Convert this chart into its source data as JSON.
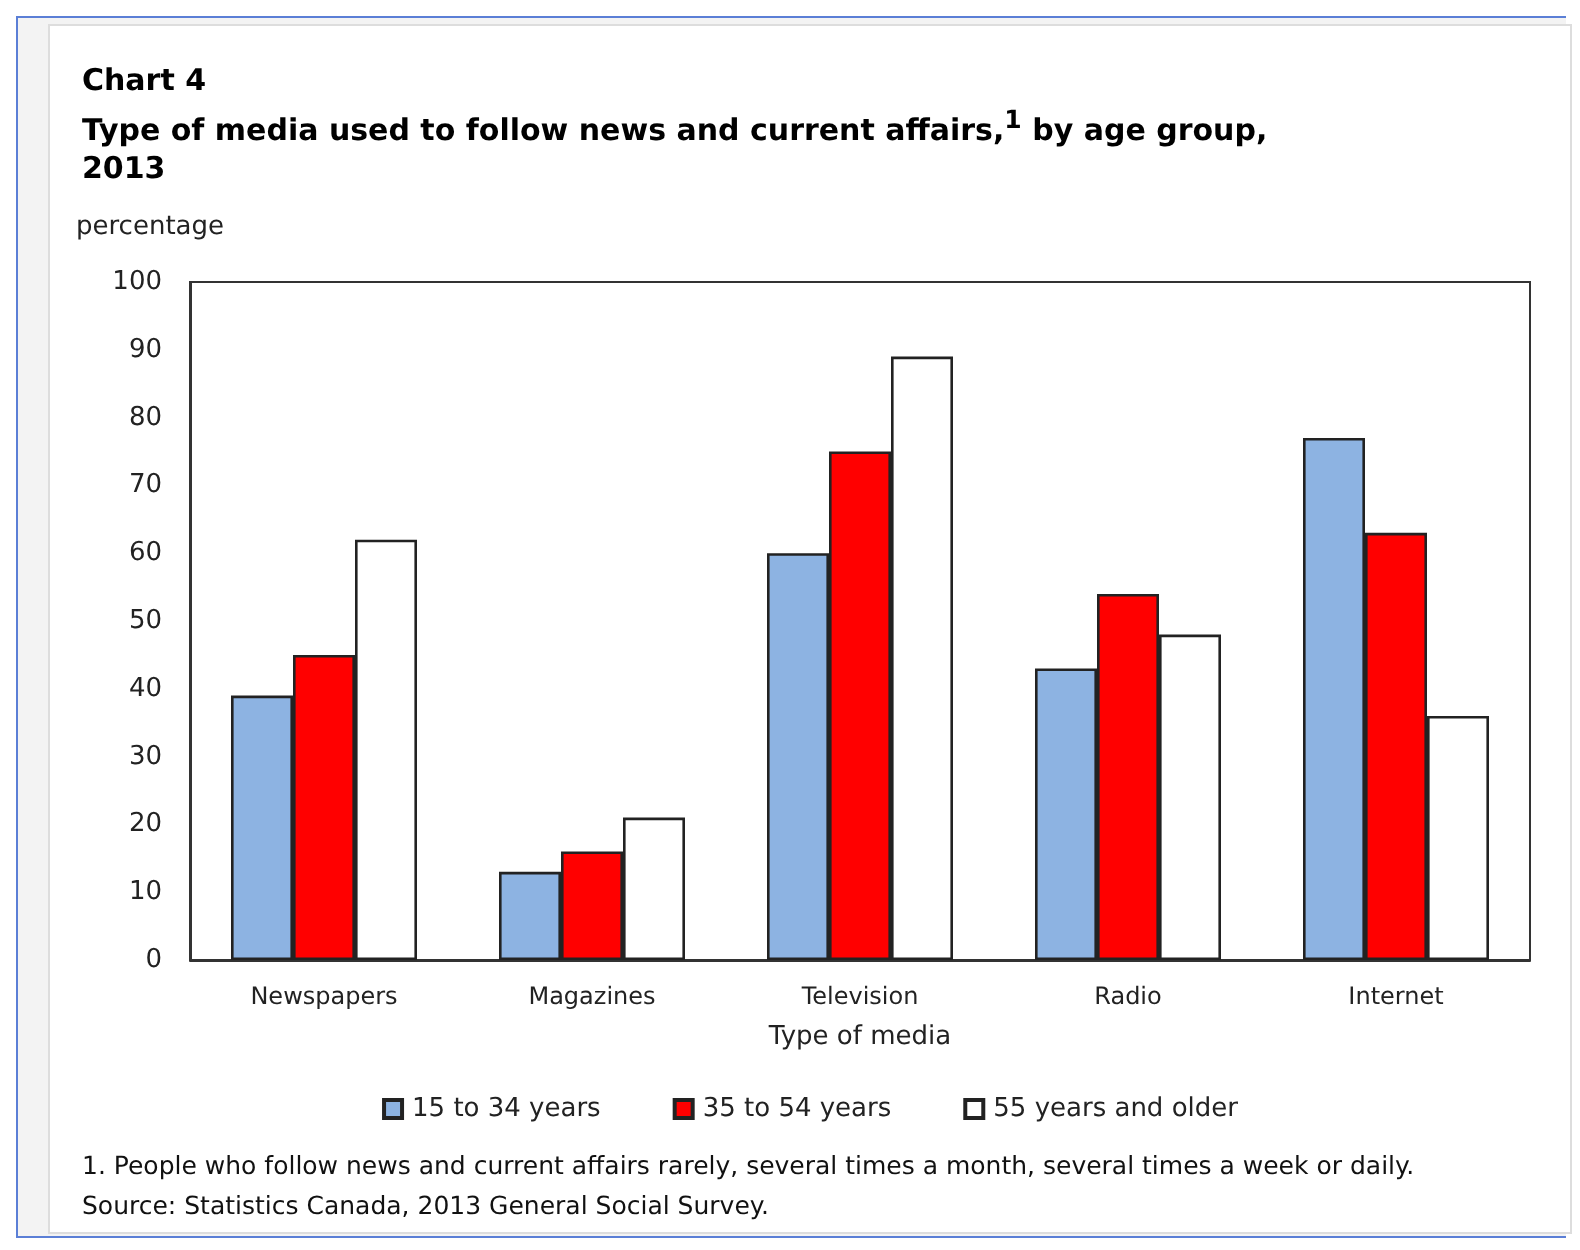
{
  "chart_data": {
    "type": "bar",
    "title": "Chart 4",
    "subtitle": "Type of media used to follow news and current affairs,$^{1}$ by age group, 2013",
    "ylabel": "percentage",
    "xlabel": "Type of media",
    "categories": [
      "Newspapers",
      "Magazines",
      "Television",
      "Radio",
      "Internet"
    ],
    "series": [
      {
        "name": "15 to 34 years",
        "color": "#8db3e2",
        "values": [
          39,
          13,
          60,
          43,
          77
        ]
      },
      {
        "name": "35 to 54 years",
        "color": "#ff0000",
        "values": [
          45,
          16,
          75,
          54,
          63
        ]
      },
      {
        "name": "55 years and older",
        "color": "#ffffff",
        "values": [
          62,
          21,
          89,
          48,
          36
        ]
      }
    ],
    "ylim": [
      0,
      100
    ],
    "yticks": [
      0,
      10,
      20,
      30,
      40,
      50,
      60,
      70,
      80,
      90,
      100
    ],
    "grid": false,
    "legend": "bottom",
    "annotations": [
      "1. People who follow news and current affairs rarely, several times a month, several times a week or daily.",
      "Source: Statistics Canada, 2013 General Social Survey."
    ]
  }
}
